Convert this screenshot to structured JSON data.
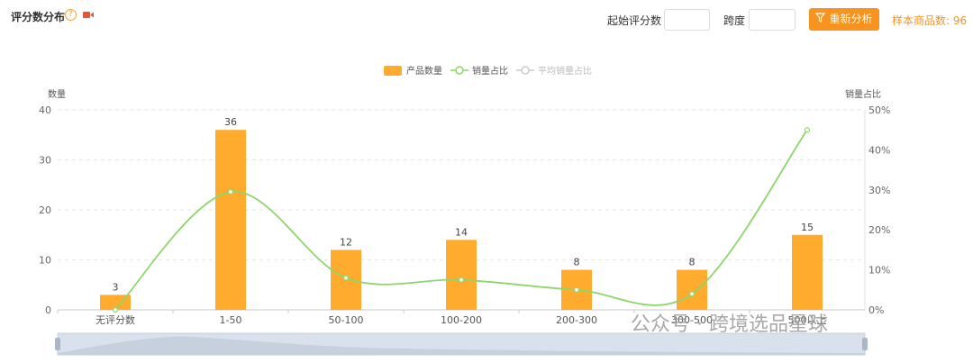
{
  "header": {
    "title": "评分数分布",
    "help_glyph": "?",
    "start_score_label": "起始评分数",
    "span_label": "跨度",
    "reanalyze_label": "重新分析",
    "sample_label": "样本商品数: 96"
  },
  "icons": {
    "help": "help-icon",
    "video": "video-camera-icon",
    "filter": "filter-icon"
  },
  "colors": {
    "accent": "#f7931e",
    "bar": "#ffab2e",
    "line": "#8ed56b"
  },
  "watermark": "公众号 · 跨境选品星球",
  "chart_data": {
    "type": "bar",
    "legend": [
      "产品数量",
      "销量占比",
      "平均销量占比"
    ],
    "legend_position": "top",
    "categories": [
      "无评分数",
      "1-50",
      "50-100",
      "100-200",
      "200-300",
      "300-500",
      "500以上"
    ],
    "series": [
      {
        "name": "产品数量",
        "type": "bar",
        "axis": "left",
        "values": [
          3,
          36,
          12,
          14,
          8,
          8,
          15
        ]
      },
      {
        "name": "销量占比",
        "type": "line",
        "axis": "right",
        "values": [
          0.0,
          29.5,
          8.0,
          7.5,
          5.0,
          4.0,
          45.0
        ]
      }
    ],
    "ylabel": "数量",
    "ylabel_right": "销量占比",
    "ylim": [
      0,
      40
    ],
    "yticks": [
      "0",
      "10",
      "20",
      "30",
      "40"
    ],
    "ylim_right": [
      0,
      50
    ],
    "yticks_right": [
      "0%",
      "10%",
      "20%",
      "30%",
      "40%",
      "50%"
    ],
    "grid": true
  }
}
